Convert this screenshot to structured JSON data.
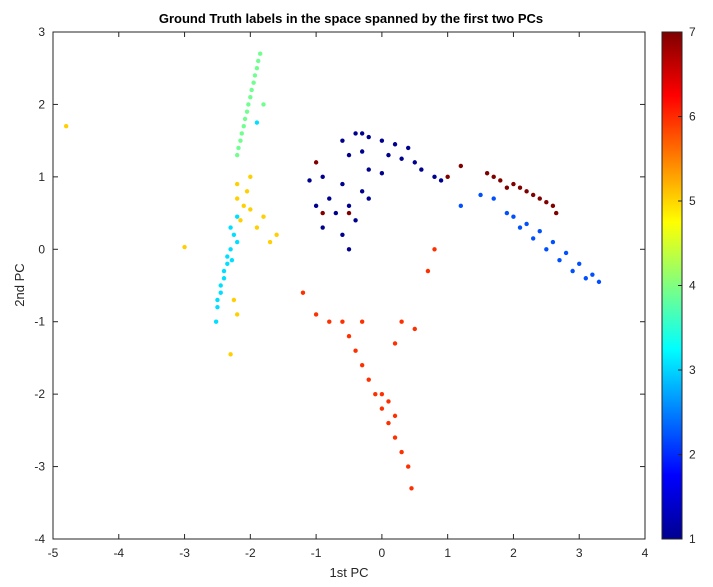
{
  "chart_data": {
    "type": "scatter",
    "title": "Ground Truth labels in the space spanned by the first two PCs",
    "xlabel": "1st PC",
    "ylabel": "2nd PC",
    "xlim": [
      -5,
      4
    ],
    "ylim": [
      -4,
      3
    ],
    "xticks": [
      "-5",
      "-4",
      "-3",
      "-2",
      "-1",
      "0",
      "1",
      "2",
      "3",
      "4"
    ],
    "yticks": [
      "-4",
      "-3",
      "-2",
      "-1",
      "0",
      "1",
      "2",
      "3"
    ],
    "grid": false,
    "colormap": "jet",
    "colorbar": {
      "range": [
        1,
        7
      ],
      "ticks": [
        "1",
        "2",
        "3",
        "4",
        "5",
        "6",
        "7"
      ],
      "location": "right"
    },
    "colors": {
      "1": "#00008F",
      "2": "#0050FF",
      "3": "#00DFFF",
      "4": "#70FF8F",
      "5": "#FFCF00",
      "6": "#FF3000",
      "7": "#800000"
    },
    "series": [
      {
        "label_value": 1,
        "points": [
          [
            -0.6,
            1.5
          ],
          [
            -0.4,
            1.6
          ],
          [
            -0.2,
            1.55
          ],
          [
            0.0,
            1.5
          ],
          [
            0.2,
            1.45
          ],
          [
            0.4,
            1.4
          ],
          [
            -0.5,
            1.3
          ],
          [
            -0.3,
            1.35
          ],
          [
            0.1,
            1.3
          ],
          [
            0.3,
            1.25
          ],
          [
            0.5,
            1.2
          ],
          [
            -0.2,
            1.1
          ],
          [
            0.0,
            1.05
          ],
          [
            -0.6,
            0.9
          ],
          [
            -0.8,
            0.7
          ],
          [
            -0.7,
            0.5
          ],
          [
            -0.5,
            0.6
          ],
          [
            -0.3,
            0.8
          ],
          [
            -1.0,
            0.6
          ],
          [
            -0.9,
            0.3
          ],
          [
            -0.6,
            0.2
          ],
          [
            -0.4,
            0.4
          ],
          [
            -0.2,
            0.7
          ],
          [
            -0.9,
            1.0
          ],
          [
            -1.1,
            0.95
          ],
          [
            -0.5,
            0.0
          ],
          [
            -0.3,
            1.6
          ],
          [
            0.6,
            1.1
          ],
          [
            0.8,
            1.0
          ],
          [
            0.9,
            0.95
          ]
        ]
      },
      {
        "label_value": 2,
        "points": [
          [
            2.0,
            0.45
          ],
          [
            2.2,
            0.35
          ],
          [
            2.4,
            0.25
          ],
          [
            2.6,
            0.1
          ],
          [
            2.8,
            -0.05
          ],
          [
            3.0,
            -0.2
          ],
          [
            3.2,
            -0.35
          ],
          [
            3.3,
            -0.45
          ],
          [
            2.1,
            0.3
          ],
          [
            2.3,
            0.15
          ],
          [
            2.5,
            0.0
          ],
          [
            2.7,
            -0.15
          ],
          [
            2.9,
            -0.3
          ],
          [
            3.1,
            -0.4
          ],
          [
            1.9,
            0.5
          ],
          [
            1.7,
            0.7
          ],
          [
            1.5,
            0.75
          ],
          [
            1.2,
            0.6
          ]
        ]
      },
      {
        "label_value": 3,
        "points": [
          [
            -2.2,
            0.45
          ],
          [
            -2.25,
            0.2
          ],
          [
            -2.3,
            0.0
          ],
          [
            -2.35,
            -0.2
          ],
          [
            -2.4,
            -0.4
          ],
          [
            -2.45,
            -0.6
          ],
          [
            -2.5,
            -0.8
          ],
          [
            -2.52,
            -1.0
          ],
          [
            -2.3,
            0.3
          ],
          [
            -2.35,
            -0.1
          ],
          [
            -2.4,
            -0.3
          ],
          [
            -2.45,
            -0.5
          ],
          [
            -2.5,
            -0.7
          ],
          [
            -2.2,
            0.1
          ],
          [
            -2.28,
            -0.15
          ],
          [
            -1.9,
            1.75
          ]
        ]
      },
      {
        "label_value": 4,
        "points": [
          [
            -1.85,
            2.7
          ],
          [
            -1.9,
            2.5
          ],
          [
            -1.95,
            2.3
          ],
          [
            -2.0,
            2.1
          ],
          [
            -2.05,
            1.9
          ],
          [
            -2.1,
            1.7
          ],
          [
            -2.15,
            1.5
          ],
          [
            -2.2,
            1.3
          ],
          [
            -1.88,
            2.6
          ],
          [
            -1.93,
            2.4
          ],
          [
            -1.98,
            2.2
          ],
          [
            -2.03,
            2.0
          ],
          [
            -2.08,
            1.8
          ],
          [
            -2.13,
            1.6
          ],
          [
            -2.18,
            1.4
          ],
          [
            -1.8,
            2.0
          ]
        ]
      },
      {
        "label_value": 5,
        "points": [
          [
            -2.0,
            1.0
          ],
          [
            -2.05,
            0.8
          ],
          [
            -2.1,
            0.6
          ],
          [
            -2.15,
            0.4
          ],
          [
            -2.2,
            0.7
          ],
          [
            -2.0,
            0.55
          ],
          [
            -1.9,
            0.3
          ],
          [
            -1.7,
            0.1
          ],
          [
            -1.6,
            0.2
          ],
          [
            -1.8,
            0.45
          ],
          [
            -2.2,
            0.9
          ],
          [
            -4.8,
            1.7
          ],
          [
            -3.0,
            0.03
          ],
          [
            -2.3,
            -1.45
          ],
          [
            -2.2,
            -0.9
          ],
          [
            -2.25,
            -0.7
          ]
        ]
      },
      {
        "label_value": 6,
        "points": [
          [
            -0.6,
            -1.0
          ],
          [
            -0.5,
            -1.2
          ],
          [
            -0.4,
            -1.4
          ],
          [
            -0.3,
            -1.6
          ],
          [
            -0.2,
            -1.8
          ],
          [
            -0.1,
            -2.0
          ],
          [
            0.0,
            -2.2
          ],
          [
            0.1,
            -2.4
          ],
          [
            0.2,
            -2.6
          ],
          [
            0.3,
            -2.8
          ],
          [
            0.4,
            -3.0
          ],
          [
            0.45,
            -3.3
          ],
          [
            -0.8,
            -1.0
          ],
          [
            -1.0,
            -0.9
          ],
          [
            -1.2,
            -0.6
          ],
          [
            0.2,
            -1.3
          ],
          [
            0.3,
            -1.0
          ],
          [
            -0.3,
            -1.0
          ],
          [
            0.8,
            0.0
          ],
          [
            0.7,
            -0.3
          ],
          [
            0.5,
            -1.1
          ],
          [
            0.0,
            -2.0
          ],
          [
            0.2,
            -2.3
          ],
          [
            0.1,
            -2.1
          ]
        ]
      },
      {
        "label_value": 7,
        "points": [
          [
            1.6,
            1.05
          ],
          [
            1.8,
            0.95
          ],
          [
            2.0,
            0.9
          ],
          [
            2.2,
            0.8
          ],
          [
            2.4,
            0.7
          ],
          [
            2.6,
            0.6
          ],
          [
            2.65,
            0.5
          ],
          [
            1.7,
            1.0
          ],
          [
            1.9,
            0.85
          ],
          [
            2.1,
            0.85
          ],
          [
            2.3,
            0.75
          ],
          [
            2.5,
            0.65
          ],
          [
            1.2,
            1.15
          ],
          [
            1.0,
            1.0
          ],
          [
            -0.5,
            0.5
          ],
          [
            -1.0,
            1.2
          ],
          [
            -0.9,
            0.5
          ]
        ]
      }
    ]
  }
}
